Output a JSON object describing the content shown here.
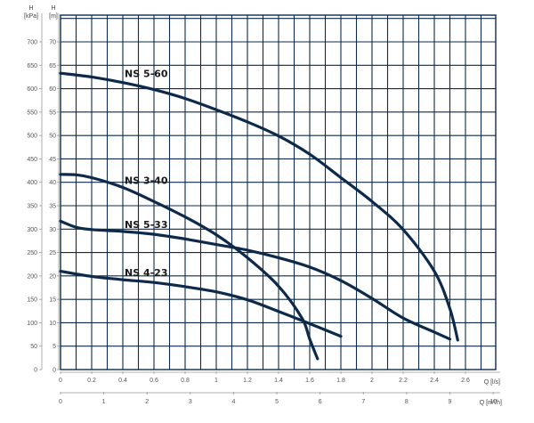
{
  "chart_data": {
    "type": "line",
    "title": "",
    "axes": {
      "head_m": {
        "label_top": "H",
        "label_bottom": "[m]",
        "range": [
          0,
          70
        ],
        "ticks": [
          "0",
          "5",
          "10",
          "15",
          "20",
          "25",
          "30",
          "35",
          "40",
          "45",
          "50",
          "55",
          "60",
          "65",
          "70"
        ]
      },
      "head_kpa": {
        "label_top": "H",
        "label_bottom": "[kPa]",
        "range": [
          0,
          700
        ],
        "ticks": [
          "0",
          "50",
          "100",
          "150",
          "200",
          "250",
          "300",
          "350",
          "400",
          "450",
          "500",
          "550",
          "600",
          "650",
          "700"
        ]
      },
      "flow_ls": {
        "label": "Q [l/s]",
        "range": [
          0,
          2.8
        ],
        "ticks": [
          "0",
          "0.2",
          "0.4",
          "0.6",
          "0.8",
          "1",
          "1.2",
          "1.4",
          "1.6",
          "1.8",
          "2",
          "2.2",
          "2.4",
          "2.6"
        ]
      },
      "flow_m3h": {
        "label": "Q [m³/h]",
        "range": [
          0,
          10
        ],
        "ticks": [
          "0",
          "1",
          "2",
          "3",
          "4",
          "5",
          "6",
          "7",
          "8",
          "9",
          "10"
        ]
      }
    },
    "grid": true,
    "series": [
      {
        "name": "NS 5-60",
        "color": "#0d2a4a",
        "x": [
          0,
          0.2,
          0.4,
          0.6,
          0.8,
          1.0,
          1.2,
          1.4,
          1.6,
          1.8,
          2.0,
          2.2,
          2.4,
          2.5,
          2.55
        ],
        "y": [
          63.3,
          62.5,
          61.3,
          59.8,
          57.9,
          55.5,
          52.9,
          49.9,
          46.0,
          41.0,
          35.9,
          29.9,
          21.0,
          13.0,
          6.3
        ]
      },
      {
        "name": "NS 3-40",
        "color": "#0d2a4a",
        "x": [
          0,
          0.1,
          0.2,
          0.4,
          0.6,
          0.8,
          1.0,
          1.2,
          1.4,
          1.55,
          1.6,
          1.65
        ],
        "y": [
          41.7,
          41.6,
          41.0,
          38.9,
          35.9,
          32.6,
          28.8,
          23.9,
          17.8,
          11.0,
          6.5,
          2.3
        ]
      },
      {
        "name": "NS 5-33",
        "color": "#0d2a4a",
        "x": [
          0,
          0.1,
          0.2,
          0.4,
          0.6,
          0.8,
          1.0,
          1.2,
          1.4,
          1.6,
          1.8,
          2.0,
          2.2,
          2.4,
          2.5
        ],
        "y": [
          31.7,
          30.4,
          29.9,
          29.5,
          28.9,
          27.9,
          26.7,
          25.5,
          23.9,
          21.9,
          19.0,
          15.2,
          11.0,
          8.0,
          6.5
        ]
      },
      {
        "name": "NS 4-23",
        "color": "#0d2a4a",
        "x": [
          0,
          0.2,
          0.4,
          0.6,
          0.8,
          1.0,
          1.2,
          1.4,
          1.6,
          1.8
        ],
        "y": [
          21.0,
          19.9,
          19.2,
          18.6,
          17.7,
          16.6,
          14.9,
          12.4,
          9.8,
          7.1
        ]
      }
    ]
  }
}
